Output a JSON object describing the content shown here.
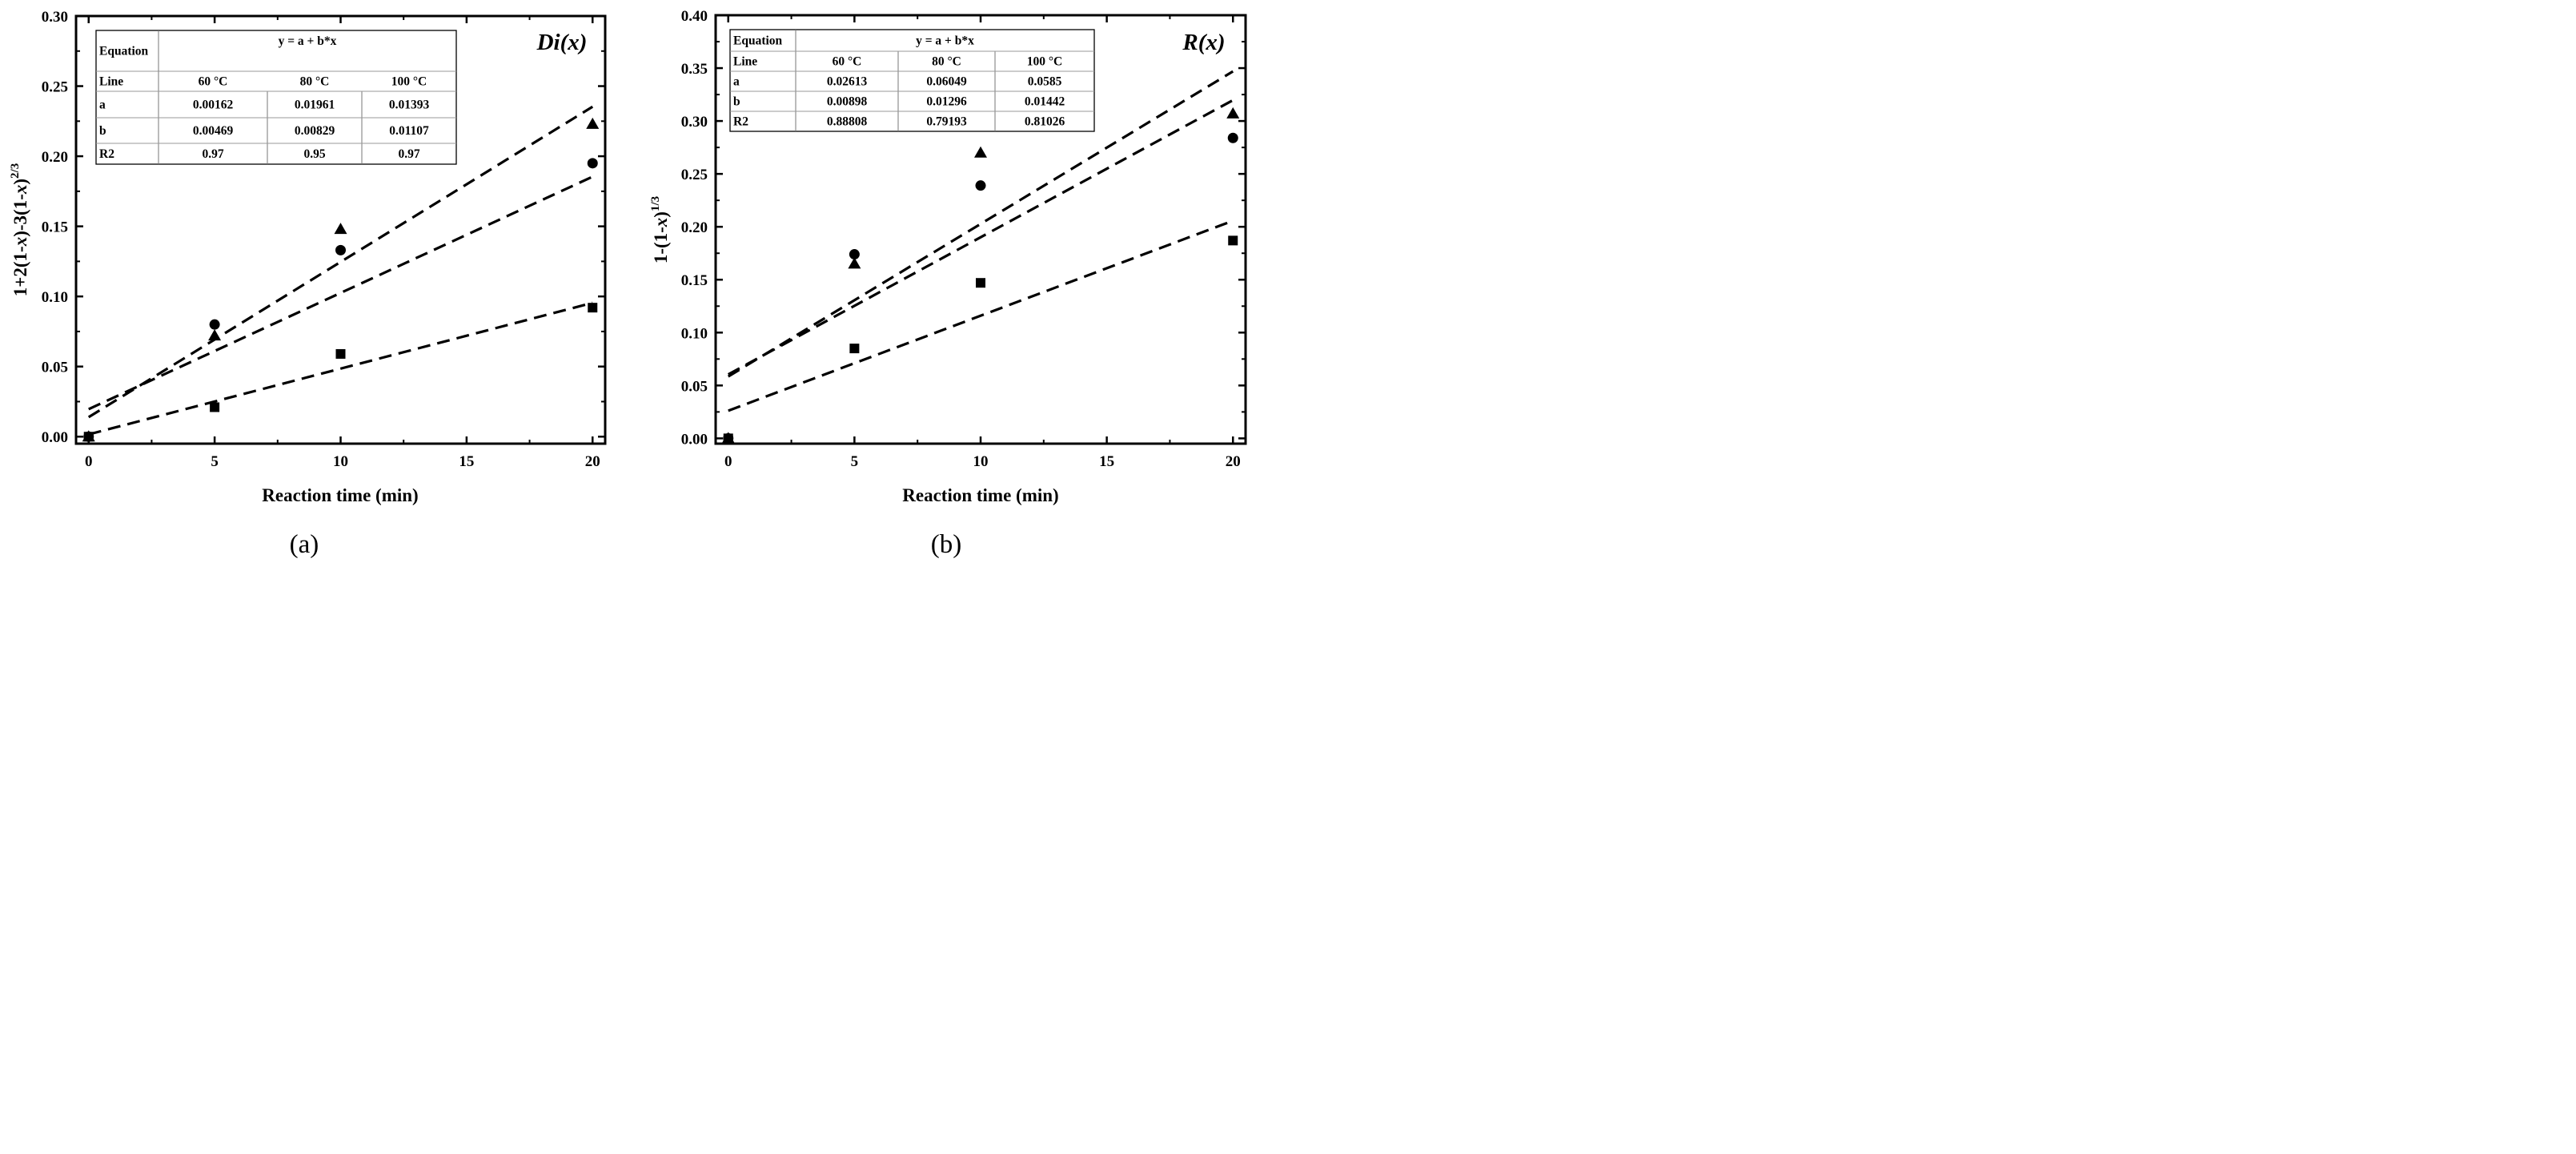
{
  "chart_data": [
    {
      "type": "scatter",
      "panel_label": "(a)",
      "model_label": "Di(x)",
      "xlabel": "Reaction time (min)",
      "ylabel": "1+2(1-x)-3(1-x)^(2/3)",
      "ylabel_parts": [
        "1+2(1-",
        "x",
        ")-3(1-",
        "x",
        ")",
        "2/3"
      ],
      "xlim": [
        -0.5,
        20.5
      ],
      "ylim": [
        -0.005,
        0.3
      ],
      "xticks": [
        0,
        5,
        10,
        15,
        20
      ],
      "xtick_labels": [
        "0",
        "5",
        "10",
        "15",
        "20"
      ],
      "yticks": [
        0.0,
        0.05,
        0.1,
        0.15,
        0.2,
        0.25,
        0.3
      ],
      "ytick_labels": [
        "0.00",
        "0.05",
        "0.10",
        "0.15",
        "0.20",
        "0.25",
        "0.30"
      ],
      "series": [
        {
          "name": "60 °C",
          "marker": "square",
          "x": [
            0,
            5,
            10,
            20
          ],
          "y": [
            0.0,
            0.021,
            0.059,
            0.092
          ],
          "fit": {
            "a": 0.00162,
            "b": 0.00469
          }
        },
        {
          "name": "80 °C",
          "marker": "circle",
          "x": [
            0,
            5,
            10,
            20
          ],
          "y": [
            0.0,
            0.08,
            0.133,
            0.195
          ],
          "fit": {
            "a": 0.01961,
            "b": 0.00829
          }
        },
        {
          "name": "100 °C",
          "marker": "triangle",
          "x": [
            0,
            5,
            10,
            20
          ],
          "y": [
            0.0,
            0.072,
            0.148,
            0.223
          ],
          "fit": {
            "a": 0.01393,
            "b": 0.01107
          }
        }
      ],
      "table": {
        "equation_label": "Equation",
        "equation": "y = a + b*x",
        "line_label": "Line",
        "columns": [
          "60 °C",
          "80 °C",
          "100 °C"
        ],
        "rows": [
          {
            "label": "a",
            "values": [
              "0.00162",
              "0.01961",
              "0.01393"
            ]
          },
          {
            "label": "b",
            "values": [
              "0.00469",
              "0.00829",
              "0.01107"
            ]
          },
          {
            "label": "R2",
            "values": [
              "0.97",
              "0.95",
              "0.97"
            ]
          }
        ]
      }
    },
    {
      "type": "scatter",
      "panel_label": "(b)",
      "model_label": "R(x)",
      "xlabel": "Reaction time (min)",
      "ylabel": "1-(1-x)^(1/3)",
      "ylabel_parts": [
        "1-(1-",
        "x",
        ")",
        "1/3"
      ],
      "xlim": [
        -0.5,
        20.5
      ],
      "ylim": [
        -0.005,
        0.4
      ],
      "xticks": [
        0,
        5,
        10,
        15,
        20
      ],
      "xtick_labels": [
        "0",
        "5",
        "10",
        "15",
        "20"
      ],
      "yticks": [
        0.0,
        0.05,
        0.1,
        0.15,
        0.2,
        0.25,
        0.3,
        0.35,
        0.4
      ],
      "ytick_labels": [
        "0.00",
        "0.05",
        "0.10",
        "0.15",
        "0.20",
        "0.25",
        "0.30",
        "0.35",
        "0.40"
      ],
      "series": [
        {
          "name": "60 °C",
          "marker": "square",
          "x": [
            0,
            5,
            10,
            20
          ],
          "y": [
            0.0,
            0.085,
            0.147,
            0.187
          ],
          "fit": {
            "a": 0.02613,
            "b": 0.00898
          }
        },
        {
          "name": "80 °C",
          "marker": "circle",
          "x": [
            0,
            5,
            10,
            20
          ],
          "y": [
            0.0,
            0.174,
            0.239,
            0.284
          ],
          "fit": {
            "a": 0.06049,
            "b": 0.01296
          }
        },
        {
          "name": "100 °C",
          "marker": "triangle",
          "x": [
            0,
            5,
            10,
            20
          ],
          "y": [
            0.0,
            0.165,
            0.27,
            0.307
          ],
          "fit": {
            "a": 0.0585,
            "b": 0.01442
          }
        }
      ],
      "table": {
        "equation_label": "Equation",
        "equation": "y = a + b*x",
        "line_label": "Line",
        "columns": [
          "60 °C",
          "80 °C",
          "100 °C"
        ],
        "rows": [
          {
            "label": "a",
            "values": [
              "0.02613",
              "0.06049",
              "0.0585"
            ]
          },
          {
            "label": "b",
            "values": [
              "0.00898",
              "0.01296",
              "0.01442"
            ]
          },
          {
            "label": "R2",
            "values": [
              "0.88808",
              "0.79193",
              "0.81026"
            ]
          }
        ]
      }
    }
  ]
}
